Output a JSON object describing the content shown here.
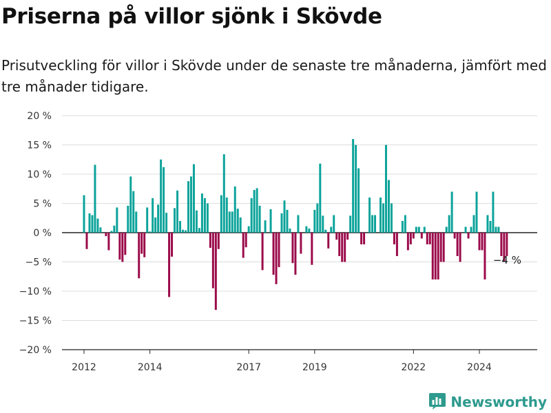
{
  "header": {
    "title": "Priserna på villor sjönk i Skövde",
    "subtitle": "Prisutveckling för villor i Skövde under de senaste tre månaderna, jämfört med tre månader tidigare."
  },
  "brand": {
    "name": "Newsworthy",
    "icon": "bar-chart-logo-icon",
    "color": "#2e9a8e"
  },
  "chart_data": {
    "type": "bar",
    "colors": {
      "positive": "#0ba39a",
      "negative": "#9b0a4a"
    },
    "ylim": [
      -20,
      20
    ],
    "y_ticks": [
      20,
      15,
      10,
      5,
      0,
      -5,
      -10,
      -15,
      -20
    ],
    "y_tick_labels": [
      "20 %",
      "15 %",
      "10 %",
      "5 %",
      "0 %",
      "−5 %",
      "−10 %",
      "−15 %",
      "−20 %"
    ],
    "x_ticks": [
      2012,
      2014,
      2017,
      2019,
      2022,
      2024
    ],
    "x_tick_labels": [
      "2012",
      "2014",
      "2017",
      "2019",
      "2022",
      "2024"
    ],
    "grid": true,
    "annotation": {
      "text": "−4 %",
      "value": -4
    },
    "x_start": 2012,
    "months_per_bar": 1,
    "values": [
      6.4,
      -2.8,
      3.3,
      3.0,
      11.6,
      2.4,
      0.9,
      0.0,
      -0.6,
      -3.0,
      0.3,
      1.2,
      4.3,
      -4.6,
      -5.0,
      -3.8,
      4.6,
      9.6,
      7.1,
      3.6,
      -7.8,
      -3.6,
      -4.2,
      4.3,
      0.2,
      5.9,
      2.6,
      4.8,
      12.5,
      11.2,
      3.4,
      -11.0,
      -4.1,
      4.2,
      7.2,
      2.0,
      0.5,
      0.4,
      8.8,
      9.6,
      11.7,
      3.8,
      0.8,
      6.7,
      5.9,
      5.0,
      -2.6,
      -9.5,
      -13.2,
      -2.8,
      6.4,
      13.4,
      6.0,
      3.6,
      3.6,
      7.9,
      4.1,
      2.6,
      -4.3,
      -2.5,
      1.1,
      5.9,
      7.3,
      7.6,
      4.6,
      -6.4,
      2.1,
      0.0,
      4.0,
      -7.2,
      -8.8,
      -5.9,
      3.3,
      5.5,
      3.9,
      0.7,
      -5.2,
      -7.2,
      3.0,
      -3.6,
      0.0,
      1.1,
      0.7,
      -5.5,
      3.9,
      5.0,
      11.8,
      2.9,
      0.5,
      -2.7,
      1.0,
      3.0,
      -1.2,
      -4.0,
      -5.0,
      -5.0,
      -1.2,
      2.9,
      16.0,
      15.0,
      11.0,
      -2.0,
      -2.0,
      0.0,
      6.0,
      3.0,
      3.0,
      0.0,
      6.0,
      5.0,
      15.0,
      9.0,
      5.0,
      -2.0,
      -4.0,
      0.0,
      2.0,
      3.0,
      -3.0,
      -2.0,
      -1.0,
      1.0,
      1.0,
      -1.0,
      1.0,
      -2.0,
      -2.0,
      -8.0,
      -8.0,
      -8.0,
      -5.0,
      -5.0,
      1.0,
      3.0,
      7.0,
      -1.0,
      -4.0,
      -5.0,
      0.0,
      1.0,
      -1.0,
      1.0,
      3.0,
      7.0,
      -3.0,
      -3.0,
      -8.0,
      3.0,
      2.0,
      7.0,
      1.0,
      1.0,
      -4.0,
      -5.0,
      -4.0
    ]
  }
}
